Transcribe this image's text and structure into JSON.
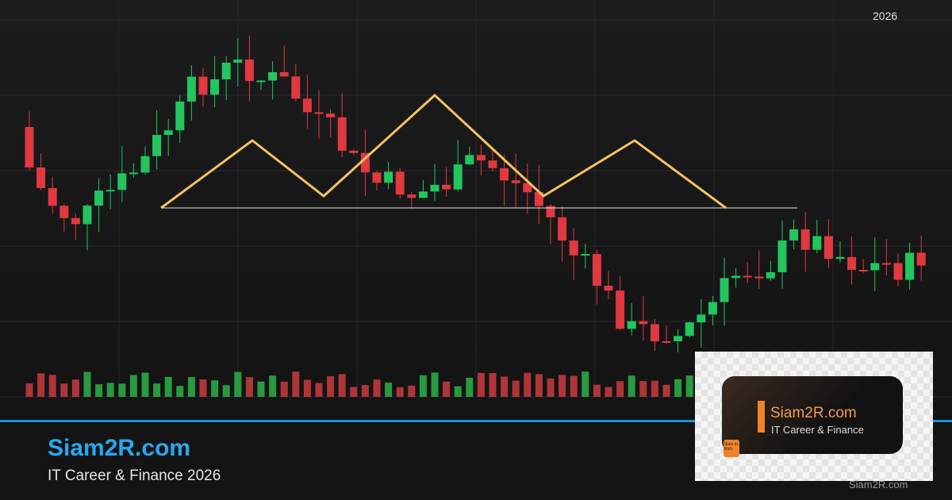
{
  "header": {
    "year_label": "2026"
  },
  "brand": {
    "title": "Siam2R.com",
    "subtitle": "IT Career & Finance 2026"
  },
  "logo_card": {
    "title": "Siam2R.com",
    "subtitle": "IT Career & Finance",
    "badge": "Siam to Rich"
  },
  "watermark": "Siam2R.com"
}
